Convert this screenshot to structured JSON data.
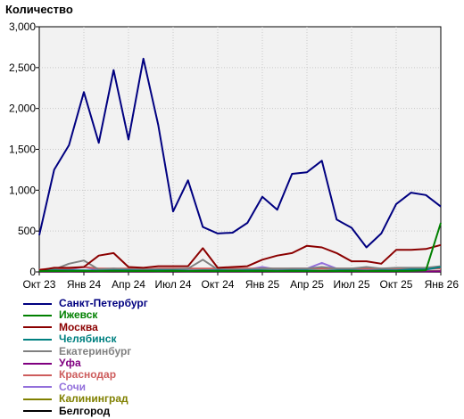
{
  "chart_data": {
    "type": "line",
    "ylabel": "Количество",
    "ylim": [
      0,
      3000
    ],
    "yticks": [
      "0",
      "500",
      "1,000",
      "1,500",
      "2,000",
      "2,500",
      "3,000"
    ],
    "xticks": [
      "Окт 23",
      "Янв 24",
      "Апр 24",
      "Июл 24",
      "Окт 24",
      "Янв 25",
      "Апр 25",
      "Июл 25",
      "Окт 25",
      "Янв 26"
    ],
    "x_start": "2023-10",
    "x_step_months": 1,
    "grid": true,
    "legend_position": "bottom-left",
    "series": [
      {
        "name": "Санкт-Петербург",
        "color": "#000080",
        "values": [
          450,
          1250,
          1550,
          2200,
          1580,
          2470,
          1620,
          2610,
          1800,
          740,
          1120,
          550,
          470,
          480,
          600,
          920,
          760,
          1200,
          1220,
          1360,
          640,
          540,
          300,
          470,
          830,
          970,
          940,
          800
        ]
      },
      {
        "name": "Ижевск",
        "color": "#008000",
        "values": [
          10,
          12,
          10,
          12,
          10,
          12,
          10,
          12,
          10,
          12,
          10,
          12,
          10,
          12,
          10,
          12,
          10,
          12,
          10,
          12,
          10,
          12,
          10,
          12,
          10,
          12,
          20,
          600
        ]
      },
      {
        "name": "Москва",
        "color": "#8b0000",
        "values": [
          20,
          50,
          50,
          60,
          200,
          230,
          60,
          50,
          70,
          70,
          70,
          290,
          50,
          60,
          70,
          150,
          200,
          230,
          320,
          300,
          230,
          130,
          130,
          100,
          270,
          270,
          280,
          330
        ]
      },
      {
        "name": "Челябинск",
        "color": "#008080",
        "values": [
          15,
          20,
          20,
          20,
          15,
          20,
          20,
          15,
          20,
          20,
          15,
          20,
          20,
          15,
          20,
          20,
          15,
          20,
          20,
          15,
          20,
          20,
          15,
          20,
          20,
          30,
          30,
          60
        ]
      },
      {
        "name": "Екатеринбург",
        "color": "#808080",
        "values": [
          20,
          30,
          100,
          140,
          30,
          40,
          30,
          30,
          30,
          30,
          40,
          150,
          30,
          30,
          30,
          40,
          40,
          40,
          40,
          60,
          40,
          40,
          60,
          40,
          50,
          50,
          50,
          70
        ]
      },
      {
        "name": "Уфа",
        "color": "#800080",
        "values": [
          5,
          8,
          5,
          8,
          5,
          8,
          5,
          8,
          5,
          8,
          5,
          8,
          5,
          8,
          5,
          8,
          5,
          8,
          5,
          8,
          5,
          8,
          5,
          8,
          5,
          8,
          5,
          8
        ]
      },
      {
        "name": "Краснодар",
        "color": "#cd5c5c",
        "values": [
          30,
          40,
          40,
          60,
          40,
          40,
          40,
          30,
          40,
          40,
          40,
          40,
          40,
          40,
          40,
          40,
          40,
          40,
          40,
          40,
          40,
          40,
          40,
          40,
          40,
          40,
          40,
          40
        ]
      },
      {
        "name": "Сочи",
        "color": "#9370db",
        "values": [
          10,
          20,
          30,
          60,
          20,
          20,
          20,
          20,
          20,
          20,
          20,
          20,
          20,
          30,
          30,
          60,
          30,
          40,
          40,
          110,
          40,
          30,
          30,
          30,
          30,
          30,
          30,
          50
        ]
      },
      {
        "name": "Калининград",
        "color": "#808000",
        "values": [
          10,
          10,
          10,
          10,
          10,
          10,
          10,
          10,
          10,
          10,
          10,
          10,
          10,
          10,
          10,
          10,
          10,
          10,
          10,
          10,
          10,
          10,
          10,
          10,
          10,
          10,
          10,
          10
        ]
      },
      {
        "name": "Белгород",
        "color": "#000000",
        "values": [
          3,
          3,
          3,
          3,
          3,
          3,
          3,
          3,
          3,
          3,
          3,
          3,
          3,
          3,
          3,
          3,
          3,
          3,
          3,
          3,
          3,
          3,
          3,
          3,
          3,
          3,
          3,
          3
        ]
      }
    ]
  }
}
